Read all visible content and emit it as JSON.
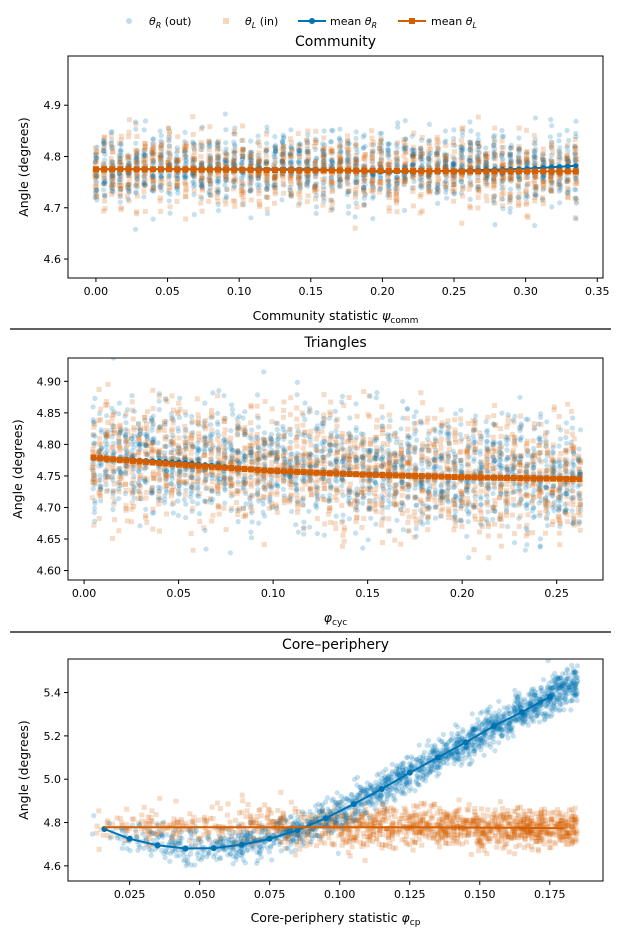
{
  "colors": {
    "theta_r": "#0072b2",
    "theta_l": "#d55e00",
    "axis": "#000000",
    "divider": "#000000"
  },
  "legend": {
    "entries": [
      {
        "theta": "θ",
        "sub": "R",
        "suffix": " (out)",
        "kind": "scatter-circle",
        "color": "#0072b2"
      },
      {
        "theta": "θ",
        "sub": "L",
        "suffix": " (in)",
        "kind": "scatter-square",
        "color": "#d55e00"
      },
      {
        "prefix": "mean ",
        "theta": "θ",
        "sub": "R",
        "kind": "line-circle",
        "color": "#0072b2"
      },
      {
        "prefix": "mean ",
        "theta": "θ",
        "sub": "L",
        "kind": "line-square",
        "color": "#d55e00"
      }
    ]
  },
  "chart_data": [
    {
      "type": "scatter",
      "title": "Community",
      "xlabel": "Community statistic",
      "xlabel_symbol": "ψ",
      "xlabel_sub": "comm",
      "ylabel": "Angle (degrees)",
      "xlim": [
        -0.0195,
        0.354
      ],
      "ylim": [
        4.563,
        4.996
      ],
      "xticks": [
        0.0,
        0.05,
        0.1,
        0.15,
        0.2,
        0.25,
        0.3,
        0.35
      ],
      "xtick_labels": [
        "0.00",
        "0.05",
        "0.10",
        "0.15",
        "0.20",
        "0.25",
        "0.30",
        "0.35"
      ],
      "yticks": [
        4.6,
        4.7,
        4.8,
        4.9
      ],
      "ytick_labels": [
        "4.6",
        "4.7",
        "4.8",
        "4.9"
      ],
      "scatter_model": {
        "x_range": [
          0.0,
          0.335
        ],
        "n_columns": 60,
        "per_column": 22,
        "theta_r_center": [
          4.775,
          4.78
        ],
        "theta_r_spread": 0.045,
        "theta_l_center": [
          4.775,
          4.77
        ],
        "theta_l_spread": 0.045
      },
      "series": [
        {
          "name": "mean θR",
          "x": [
            0.0,
            0.05,
            0.1,
            0.15,
            0.2,
            0.25,
            0.3,
            0.335
          ],
          "values": [
            4.775,
            4.775,
            4.775,
            4.775,
            4.77,
            4.772,
            4.776,
            4.782
          ]
        },
        {
          "name": "mean θL",
          "x": [
            0.0,
            0.05,
            0.1,
            0.15,
            0.2,
            0.25,
            0.3,
            0.335
          ],
          "values": [
            4.775,
            4.775,
            4.774,
            4.773,
            4.772,
            4.771,
            4.771,
            4.771
          ]
        }
      ]
    },
    {
      "type": "scatter",
      "title": "Triangles",
      "xlabel": "",
      "xlabel_symbol": "φ",
      "xlabel_sub": "cyc",
      "ylabel": "Angle (degrees)",
      "xlim": [
        -0.0085,
        0.2745
      ],
      "ylim": [
        4.585,
        4.937
      ],
      "xticks": [
        0.0,
        0.05,
        0.1,
        0.15,
        0.2,
        0.25
      ],
      "xtick_labels": [
        "0.00",
        "0.05",
        "0.10",
        "0.15",
        "0.20",
        "0.25"
      ],
      "yticks": [
        4.6,
        4.65,
        4.7,
        4.75,
        4.8,
        4.85,
        4.9
      ],
      "ytick_labels": [
        "4.60",
        "4.65",
        "4.70",
        "4.75",
        "4.80",
        "4.85",
        "4.90"
      ],
      "scatter_model": {
        "x_range": [
          0.005,
          0.262
        ],
        "n_columns": 75,
        "per_column": 22,
        "theta_r_center": [
          4.778,
          4.745
        ],
        "theta_r_spread": 0.06,
        "theta_l_center": [
          4.778,
          4.745
        ],
        "theta_l_spread": 0.06
      },
      "series": [
        {
          "name": "mean θR",
          "x": [
            0.005,
            0.05,
            0.1,
            0.15,
            0.2,
            0.262
          ],
          "values": [
            4.778,
            4.772,
            4.757,
            4.753,
            4.748,
            4.746
          ]
        },
        {
          "name": "mean θL",
          "x": [
            0.005,
            0.05,
            0.1,
            0.15,
            0.2,
            0.262
          ],
          "values": [
            4.779,
            4.768,
            4.758,
            4.752,
            4.748,
            4.745
          ]
        }
      ]
    },
    {
      "type": "scatter",
      "title": "Core–periphery",
      "xlabel": "Core-periphery statistic",
      "xlabel_symbol": "φ",
      "xlabel_sub": "cp",
      "ylabel": "Angle (degrees)",
      "xlim": [
        0.003,
        0.194
      ],
      "ylim": [
        4.53,
        5.555
      ],
      "xticks": [
        0.025,
        0.05,
        0.075,
        0.1,
        0.125,
        0.15,
        0.175
      ],
      "xtick_labels": [
        "0.025",
        "0.050",
        "0.075",
        "0.100",
        "0.125",
        "0.150",
        "0.175"
      ],
      "yticks": [
        4.6,
        4.8,
        5.0,
        5.2,
        5.4
      ],
      "ytick_labels": [
        "4.6",
        "4.8",
        "5.0",
        "5.2",
        "5.4"
      ],
      "scatter_model": {
        "x_range": [
          0.01,
          0.185
        ]
      },
      "series": [
        {
          "name": "mean θR",
          "x": [
            0.016,
            0.025,
            0.035,
            0.045,
            0.055,
            0.065,
            0.075,
            0.085,
            0.095,
            0.105,
            0.115,
            0.125,
            0.135,
            0.145,
            0.155,
            0.165,
            0.175
          ],
          "values": [
            4.77,
            4.725,
            4.695,
            4.68,
            4.682,
            4.697,
            4.725,
            4.765,
            4.82,
            4.885,
            4.955,
            5.03,
            5.1,
            5.17,
            5.245,
            5.31,
            5.38
          ]
        },
        {
          "name": "mean θL",
          "x": [
            0.016,
            0.04,
            0.06,
            0.08,
            0.1,
            0.12,
            0.14,
            0.16,
            0.18
          ],
          "values": [
            4.778,
            4.778,
            4.778,
            4.778,
            4.778,
            4.778,
            4.777,
            4.776,
            4.774
          ]
        }
      ]
    }
  ]
}
